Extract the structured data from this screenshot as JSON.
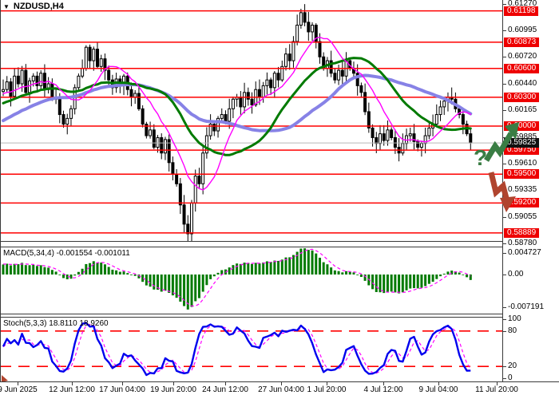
{
  "window": {
    "title": "NZDUSD,H4"
  },
  "colors": {
    "level_line": "#ff0000",
    "level_label_bg": "#ee0000",
    "current_label_bg": "#111111",
    "current_line": "#b8b8b8",
    "candle_up_fill": "#ffffff",
    "candle_down_fill": "#000000",
    "candle_outline": "#000000",
    "ma_fast": "#ff00ff",
    "ma_mid": "#007a00",
    "ma_slow": "#8782e6",
    "macd_bar": "#007a00",
    "macd_signal": "#ff00ff",
    "stoch_main": "#0000ee",
    "stoch_signal": "#ff00ff",
    "stoch_level": "#ff0000",
    "arrow_up": "#3a7d44",
    "arrow_down": "#b0442e",
    "axis_text": "#000000"
  },
  "annotations": {
    "question_mark": "?"
  },
  "chart_data": {
    "type": "candlestick",
    "symbol": "NZDUSD",
    "timeframe": "H4",
    "title": "NZDUSD,H4",
    "x_axis_labels": [
      "9 Jun 2025",
      "12 Jun 12:00",
      "17 Jun 04:00",
      "19 Jun 20:00",
      "24 Jun 12:00",
      "27 Jun 04:00",
      "1 Jul 20:00",
      "4 Jul 12:00",
      "9 Jul 04:00",
      "11 Jul 20:00"
    ],
    "price_axis_ticks": [
      0.6127,
      0.60995,
      0.6072,
      0.6044,
      0.60165,
      0.59885,
      0.5961,
      0.59335,
      0.59055,
      0.5878
    ],
    "level_lines": [
      0.61198,
      0.60873,
      0.606,
      0.603,
      0.6,
      0.5975,
      0.595,
      0.592,
      0.58889
    ],
    "current_price": 0.59825,
    "price_axis_range": {
      "top": 0.6127,
      "bottom": 0.5878
    },
    "closes": [
      0.6038,
      0.6046,
      0.6031,
      0.6052,
      0.6044,
      0.6058,
      0.6035,
      0.6047,
      0.6052,
      0.6042,
      0.6055,
      0.6038,
      0.6044,
      0.603,
      0.6028,
      0.6012,
      0.6002,
      0.6008,
      0.6018,
      0.604,
      0.6052,
      0.606,
      0.6082,
      0.6068,
      0.608,
      0.6062,
      0.607,
      0.6058,
      0.6048,
      0.604,
      0.6049,
      0.6042,
      0.6052,
      0.6038,
      0.603,
      0.6034,
      0.6018,
      0.6002,
      0.599,
      0.5996,
      0.5978,
      0.5988,
      0.5972,
      0.5986,
      0.5962,
      0.595,
      0.594,
      0.5918,
      0.5898,
      0.5888,
      0.592,
      0.5948,
      0.594,
      0.5972,
      0.599,
      0.6002,
      0.5995,
      0.6008,
      0.6012,
      0.6005,
      0.6018,
      0.6028,
      0.603,
      0.602,
      0.6035,
      0.6028,
      0.6022,
      0.6038,
      0.603,
      0.6042,
      0.6048,
      0.604,
      0.6055,
      0.6048,
      0.6062,
      0.6075,
      0.6068,
      0.6088,
      0.6105,
      0.6118,
      0.6108,
      0.6098,
      0.6105,
      0.6088,
      0.6072,
      0.606,
      0.6068,
      0.6055,
      0.6048,
      0.6058,
      0.6052,
      0.6068,
      0.606,
      0.6055,
      0.6042,
      0.6035,
      0.6015,
      0.5998,
      0.5988,
      0.5982,
      0.5992,
      0.5985,
      0.5996,
      0.5988,
      0.5978,
      0.5972,
      0.5982,
      0.599,
      0.5992,
      0.5984,
      0.5978,
      0.5982,
      0.599,
      0.5998,
      0.6002,
      0.6012,
      0.602,
      0.6026,
      0.603,
      0.6028,
      0.6018,
      0.6012,
      0.6002,
      0.5992,
      0.59825
    ],
    "ma_warmup_closes": [
      0.595,
      0.5958,
      0.5952,
      0.5963,
      0.597,
      0.5965,
      0.5975,
      0.5968,
      0.598,
      0.5978,
      0.5988,
      0.5982,
      0.5992,
      0.5998,
      0.599,
      0.6002,
      0.5996,
      0.6008,
      0.6002,
      0.6012,
      0.6006,
      0.6016,
      0.601,
      0.602,
      0.6014,
      0.6024,
      0.6018,
      0.6028,
      0.6022,
      0.603,
      0.6024,
      0.6034,
      0.6026,
      0.6036,
      0.6028,
      0.6038,
      0.603,
      0.604,
      0.6032,
      0.6036
    ],
    "extremes": {
      "high_index": 79,
      "high": 0.6122,
      "low_index": 49,
      "low": 0.588
    },
    "moving_averages": [
      {
        "name": "fast",
        "period": 10
      },
      {
        "name": "mid",
        "period": 24
      },
      {
        "name": "slow",
        "period": 40
      }
    ],
    "macd": {
      "label": "MACD(5,34,4) -0.001554 -0.001011",
      "params": [
        5,
        34,
        4
      ],
      "last_values": [
        -0.001554,
        -0.001011
      ],
      "axis_labels": [
        0.004727,
        0.0,
        -0.007191
      ]
    },
    "stoch": {
      "label": "Stoch(5,3,3) 18.8110 18.9260",
      "params": [
        5,
        3,
        3
      ],
      "last_values": [
        18.811,
        18.926
      ],
      "axis_labels": [
        100,
        80,
        20,
        0
      ],
      "signal_levels": [
        80,
        20
      ]
    }
  }
}
